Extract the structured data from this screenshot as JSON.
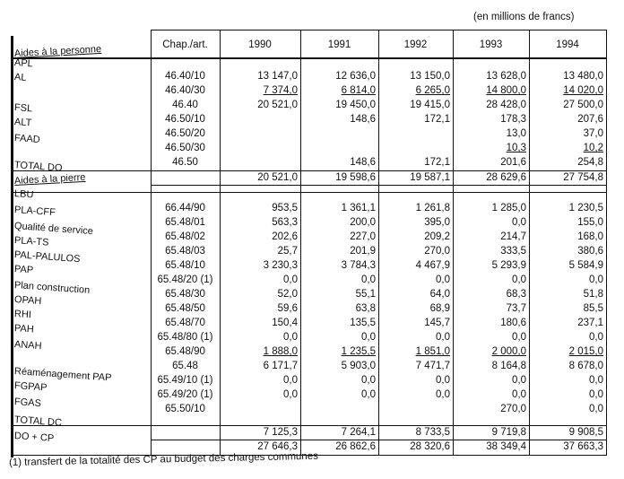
{
  "unit_note": "(en millions de francs)",
  "headers": [
    "Chap./art.",
    "1990",
    "1991",
    "1992",
    "1993",
    "1994"
  ],
  "labels": [
    {
      "text": "Aides à la personne",
      "heading": true
    },
    {
      "text": "APL"
    },
    {
      "text": "AL"
    },
    {
      "text": "FSL"
    },
    {
      "text": "ALT"
    },
    {
      "text": "FAAD"
    },
    {
      "text": "TOTAL DO"
    },
    {
      "text": "Aides à la pierre",
      "heading": true
    },
    {
      "text": "LBU"
    },
    {
      "text": "PLA-CFF"
    },
    {
      "text": "Qualité de service"
    },
    {
      "text": "PLA-TS"
    },
    {
      "text": "PAL-PALULOS"
    },
    {
      "text": "PAP"
    },
    {
      "text": "Plan construction"
    },
    {
      "text": "OPAH"
    },
    {
      "text": "RHI"
    },
    {
      "text": "PAH"
    },
    {
      "text": "ANAH"
    },
    {
      "text": "Réaménagement PAP"
    },
    {
      "text": "FGPAP"
    },
    {
      "text": "FGAS"
    },
    {
      "text": "TOTAL DC"
    },
    {
      "text": "DO + CP"
    }
  ],
  "rows": [
    [
      "46.40/10",
      "13 147,0",
      "12 636,0",
      "13 150,0",
      "13 628,0",
      "13 480,0"
    ],
    [
      "46.40/30",
      "7 374,0",
      "6 814,0",
      "6 265,0",
      "14 800,0",
      "14 020,0"
    ],
    [
      "46.40",
      "20 521,0",
      "19 450,0",
      "19 415,0",
      "28 428,0",
      "27 500,0"
    ],
    [
      "46.50/10",
      "",
      "148,6",
      "172,1",
      "178,3",
      "207,6"
    ],
    [
      "46.50/20",
      "",
      "",
      "",
      "13,0",
      "37,0"
    ],
    [
      "46.50/30",
      "",
      "",
      "",
      "10,3",
      "10,2"
    ],
    [
      "46.50",
      "",
      "148,6",
      "172,1",
      "201,6",
      "254,8"
    ],
    [
      "",
      "20 521,0",
      "19 598,6",
      "19 587,1",
      "28 629,6",
      "27 754,8"
    ],
    [
      "66.44/90",
      "953,5",
      "1 361,1",
      "1 261,8",
      "1 285,0",
      "1 230,5"
    ],
    [
      "65.48/01",
      "563,3",
      "200,0",
      "395,0",
      "0,0",
      "155,0"
    ],
    [
      "65.48/02",
      "202,6",
      "227,0",
      "209,2",
      "214,7",
      "168,0"
    ],
    [
      "65.48/03",
      "25,7",
      "201,9",
      "270,0",
      "333,5",
      "380,6"
    ],
    [
      "65.48/10",
      "3 230,3",
      "3 784,3",
      "4 467,9",
      "5 293,9",
      "5 584,9"
    ],
    [
      "65.48/20 (1)",
      "0,0",
      "0,0",
      "0,0",
      "0,0",
      "0,0"
    ],
    [
      "65.48/30",
      "52,0",
      "55,1",
      "64,0",
      "68,3",
      "51,8"
    ],
    [
      "65.48/50",
      "59,6",
      "63,8",
      "68,9",
      "73,7",
      "85,5"
    ],
    [
      "65.48/70",
      "150,4",
      "135,5",
      "145,7",
      "180,6",
      "237,1"
    ],
    [
      "65.48/80 (1)",
      "0,0",
      "0,0",
      "0,0",
      "0,0",
      "0,0"
    ],
    [
      "65.48/90",
      "1 888,0",
      "1 235,5",
      "1 851,0",
      "2 000,0",
      "2 015,0"
    ],
    [
      "65.48",
      "6 171,7",
      "5 903,0",
      "7 471,7",
      "8 164,8",
      "8 678,0"
    ],
    [
      "65.49/10 (1)",
      "0,0",
      "0,0",
      "0,0",
      "0,0",
      "0,0"
    ],
    [
      "65.49/20 (1)",
      "0,0",
      "0,0",
      "0,0",
      "0,0",
      "0,0"
    ],
    [
      "65.50/10",
      "",
      "",
      "",
      "270,0",
      "0,0"
    ],
    [
      "",
      "7 125,3",
      "7 264,1",
      "8 733,5",
      "9 719,8",
      "9 908,5"
    ],
    [
      "",
      "27 646,3",
      "26 862,6",
      "28 320,6",
      "38 349,4",
      "37 663,3"
    ]
  ],
  "footnote": "(1) transfert de la totalité des CP au budget des charges communes"
}
